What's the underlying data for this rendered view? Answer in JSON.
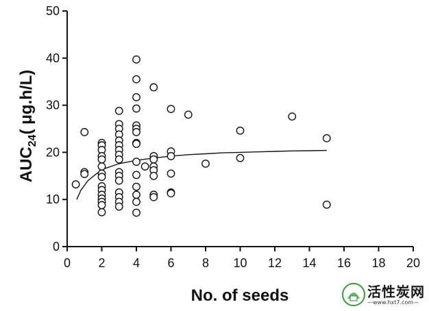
{
  "chart_data": {
    "type": "scatter",
    "xlabel": "No. of seeds",
    "ylabel_main": "AUC",
    "ylabel_sub": "24",
    "ylabel_rest": "( μg.h/L)",
    "xlim": [
      0,
      20
    ],
    "ylim": [
      0,
      50
    ],
    "x_ticks": [
      0,
      2,
      4,
      6,
      8,
      10,
      12,
      14,
      16,
      18,
      20
    ],
    "y_ticks": [
      0,
      10,
      20,
      30,
      40,
      50
    ],
    "grid": false,
    "points": [
      {
        "x": 0.5,
        "y": 13.2
      },
      {
        "x": 1,
        "y": 24.3
      },
      {
        "x": 1,
        "y": 15.8
      },
      {
        "x": 1,
        "y": 15.4
      },
      {
        "x": 2,
        "y": 22.0
      },
      {
        "x": 2,
        "y": 21.5
      },
      {
        "x": 2,
        "y": 20.5
      },
      {
        "x": 2,
        "y": 19.2
      },
      {
        "x": 2,
        "y": 18.5
      },
      {
        "x": 2,
        "y": 17.0
      },
      {
        "x": 2,
        "y": 15.5
      },
      {
        "x": 2,
        "y": 14.8
      },
      {
        "x": 2,
        "y": 12.8
      },
      {
        "x": 2,
        "y": 12.0
      },
      {
        "x": 2,
        "y": 11.0
      },
      {
        "x": 2,
        "y": 10.2
      },
      {
        "x": 2,
        "y": 9.5
      },
      {
        "x": 2,
        "y": 8.8
      },
      {
        "x": 2,
        "y": 7.3
      },
      {
        "x": 3,
        "y": 28.8
      },
      {
        "x": 3,
        "y": 26.0
      },
      {
        "x": 3,
        "y": 25.0
      },
      {
        "x": 3,
        "y": 23.8
      },
      {
        "x": 3,
        "y": 22.5
      },
      {
        "x": 3,
        "y": 21.5
      },
      {
        "x": 3,
        "y": 20.5
      },
      {
        "x": 3,
        "y": 19.5
      },
      {
        "x": 3,
        "y": 18.5
      },
      {
        "x": 3,
        "y": 15.8
      },
      {
        "x": 3,
        "y": 15.0
      },
      {
        "x": 3,
        "y": 14.0
      },
      {
        "x": 3,
        "y": 11.5
      },
      {
        "x": 3,
        "y": 10.5
      },
      {
        "x": 3,
        "y": 9.5
      },
      {
        "x": 3,
        "y": 8.5
      },
      {
        "x": 4,
        "y": 39.7
      },
      {
        "x": 4,
        "y": 35.5
      },
      {
        "x": 4,
        "y": 31.7
      },
      {
        "x": 4,
        "y": 29.3
      },
      {
        "x": 4,
        "y": 25.7
      },
      {
        "x": 4,
        "y": 25.0
      },
      {
        "x": 4,
        "y": 24.3
      },
      {
        "x": 4,
        "y": 22.0
      },
      {
        "x": 4,
        "y": 21.8
      },
      {
        "x": 4,
        "y": 18.0
      },
      {
        "x": 4,
        "y": 15.2
      },
      {
        "x": 4,
        "y": 12.7
      },
      {
        "x": 4,
        "y": 11.0
      },
      {
        "x": 4,
        "y": 9.5
      },
      {
        "x": 4,
        "y": 7.2
      },
      {
        "x": 4.5,
        "y": 17.0
      },
      {
        "x": 5,
        "y": 33.8
      },
      {
        "x": 5,
        "y": 19.2
      },
      {
        "x": 5,
        "y": 18.5
      },
      {
        "x": 5,
        "y": 17.0
      },
      {
        "x": 5,
        "y": 16.2
      },
      {
        "x": 5,
        "y": 15.0
      },
      {
        "x": 5,
        "y": 11.0
      },
      {
        "x": 5,
        "y": 10.5
      },
      {
        "x": 6,
        "y": 29.2
      },
      {
        "x": 6,
        "y": 20.2
      },
      {
        "x": 6,
        "y": 19.2
      },
      {
        "x": 6,
        "y": 15.5
      },
      {
        "x": 6,
        "y": 11.5
      },
      {
        "x": 6,
        "y": 11.3
      },
      {
        "x": 7,
        "y": 28.0
      },
      {
        "x": 8,
        "y": 17.6
      },
      {
        "x": 10,
        "y": 24.6
      },
      {
        "x": 10,
        "y": 18.8
      },
      {
        "x": 13,
        "y": 27.6
      },
      {
        "x": 15,
        "y": 23.0
      },
      {
        "x": 15,
        "y": 8.9
      }
    ],
    "fit_curve": [
      {
        "x": 0.55,
        "y": 10.0
      },
      {
        "x": 0.8,
        "y": 12.0
      },
      {
        "x": 1.2,
        "y": 14.0
      },
      {
        "x": 1.7,
        "y": 15.5
      },
      {
        "x": 2.2,
        "y": 16.6
      },
      {
        "x": 3,
        "y": 17.6
      },
      {
        "x": 4,
        "y": 18.3
      },
      {
        "x": 5,
        "y": 18.8
      },
      {
        "x": 6,
        "y": 19.2
      },
      {
        "x": 7,
        "y": 19.5
      },
      {
        "x": 8,
        "y": 19.7
      },
      {
        "x": 9,
        "y": 19.9
      },
      {
        "x": 10,
        "y": 20.0
      },
      {
        "x": 11,
        "y": 20.1
      },
      {
        "x": 12,
        "y": 20.2
      },
      {
        "x": 13,
        "y": 20.3
      },
      {
        "x": 14,
        "y": 20.35
      },
      {
        "x": 15,
        "y": 20.4
      }
    ]
  },
  "watermark": {
    "name": "活性炭网",
    "url": "www.hxt7.com"
  },
  "colors": {
    "axis": "#111111",
    "marker_edge": "#111111",
    "marker_fill": "#ffffff",
    "logo_green": "#3a9a3a"
  }
}
